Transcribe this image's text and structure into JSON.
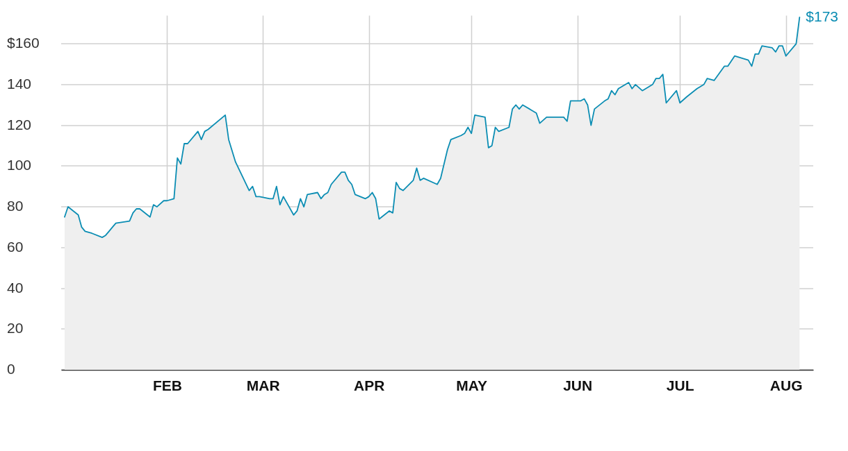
{
  "chart_data": {
    "type": "area",
    "x": [
      "--01-02",
      "--01-03",
      "--01-06",
      "--01-07",
      "--01-08",
      "--01-10",
      "--01-13",
      "--01-14",
      "--01-15",
      "--01-16",
      "--01-17",
      "--01-21",
      "--01-22",
      "--01-23",
      "--01-24",
      "--01-27",
      "--01-28",
      "--01-29",
      "--01-31",
      "--02-01",
      "--02-03",
      "--02-04",
      "--02-05",
      "--02-06",
      "--02-07",
      "--02-10",
      "--02-11",
      "--02-12",
      "--02-13",
      "--02-18",
      "--02-19",
      "--02-21",
      "--02-25",
      "--02-26",
      "--02-27",
      "--02-28",
      "--03-03",
      "--03-04",
      "--03-05",
      "--03-06",
      "--03-07",
      "--03-10",
      "--03-11",
      "--03-12",
      "--03-13",
      "--03-14",
      "--03-17",
      "--03-18",
      "--03-19",
      "--03-20",
      "--03-21",
      "--03-24",
      "--03-25",
      "--03-26",
      "--03-27",
      "--03-28",
      "--03-31",
      "--04-01",
      "--04-02",
      "--04-03",
      "--04-04",
      "--04-07",
      "--04-08",
      "--04-09",
      "--04-10",
      "--04-11",
      "--04-14",
      "--04-15",
      "--04-16",
      "--04-17",
      "--04-21",
      "--04-22",
      "--04-24",
      "--04-25",
      "--04-28",
      "--04-29",
      "--04-30",
      "--05-01",
      "--05-02",
      "--05-05",
      "--05-06",
      "--05-07",
      "--05-08",
      "--05-09",
      "--05-12",
      "--05-13",
      "--05-14",
      "--05-15",
      "--05-16",
      "--05-20",
      "--05-21",
      "--05-23",
      "--05-27",
      "--05-28",
      "--05-29",
      "--05-30",
      "--06-02",
      "--06-03",
      "--06-04",
      "--06-05",
      "--06-06",
      "--06-09",
      "--06-10",
      "--06-11",
      "--06-12",
      "--06-13",
      "--06-16",
      "--06-17",
      "--06-18",
      "--06-20",
      "--06-23",
      "--06-24",
      "--06-25",
      "--06-26",
      "--06-27",
      "--06-30",
      "--07-01",
      "--07-03",
      "--07-06",
      "--07-07",
      "--07-08",
      "--07-09",
      "--07-11",
      "--07-14",
      "--07-15",
      "--07-17",
      "--07-21",
      "--07-22",
      "--07-23",
      "--07-24",
      "--07-25",
      "--07-28",
      "--07-29",
      "--07-30",
      "--07-31",
      "--08-01",
      "--08-04",
      "--08-05"
    ],
    "series": [
      {
        "color": "#0b8db3",
        "values": [
          75,
          80,
          76,
          70,
          68,
          67,
          65,
          66,
          68,
          70,
          72,
          73,
          77,
          79,
          79,
          75,
          81,
          80,
          83,
          83,
          84,
          104,
          101,
          111,
          111,
          117,
          113,
          117,
          118,
          125,
          113,
          102,
          88,
          90,
          85,
          85,
          84,
          84,
          90,
          81,
          85,
          76,
          78,
          84,
          80,
          86,
          87,
          84,
          86,
          87,
          91,
          97,
          97,
          93,
          91,
          86,
          84,
          85,
          87,
          84,
          74,
          78,
          77,
          92,
          89,
          88,
          93,
          99,
          93,
          94,
          91,
          94,
          108,
          113,
          115,
          116,
          119,
          116,
          125,
          124,
          109,
          110,
          119,
          117,
          119,
          128,
          130,
          128,
          130,
          126,
          121,
          124,
          124,
          124,
          122,
          132,
          132,
          133,
          130,
          120,
          128,
          132,
          133,
          137,
          135,
          138,
          141,
          138,
          140,
          137,
          140,
          143,
          143,
          145,
          131,
          137,
          131,
          134,
          138,
          139,
          140,
          143,
          142,
          149,
          149,
          154,
          152,
          149,
          155,
          155,
          159,
          158,
          156,
          159,
          159,
          154,
          160,
          173
        ]
      }
    ],
    "xlim": [
      "--01-01",
      "--08-09"
    ],
    "xticks": [
      {
        "value": "--02-01",
        "label": "FEB"
      },
      {
        "value": "--03-01",
        "label": "MAR"
      },
      {
        "value": "--04-01",
        "label": "APR"
      },
      {
        "value": "--05-01",
        "label": "MAY"
      },
      {
        "value": "--06-01",
        "label": "JUN"
      },
      {
        "value": "--07-01",
        "label": "JUL"
      },
      {
        "value": "--08-01",
        "label": "AUG"
      }
    ],
    "ylim": [
      0,
      174
    ],
    "yticks": [
      0,
      20,
      40,
      60,
      80,
      100,
      120,
      140,
      {
        "value": 160,
        "label": "$160"
      }
    ],
    "grid": true,
    "annotations": [
      {
        "text": "$173",
        "x": "--08-05",
        "y": 173
      }
    ]
  }
}
